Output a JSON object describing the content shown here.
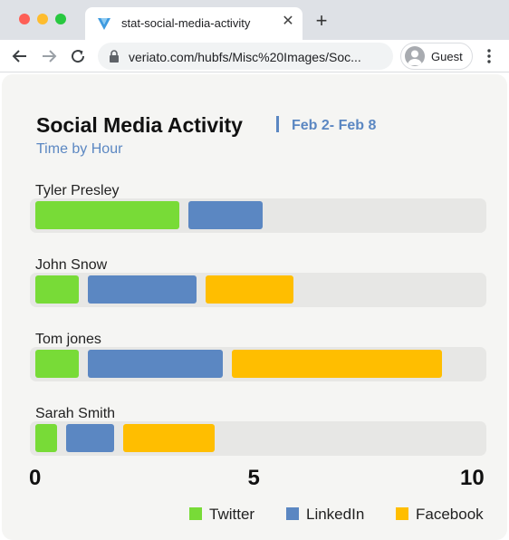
{
  "browser": {
    "tab_title": "stat-social-media-activity",
    "url": "veriato.com/hubfs/Misc%20Images/Soc...",
    "profile_label": "Guest"
  },
  "page": {
    "title": "Social Media Activity",
    "date_range": "Feb 2- Feb 8",
    "subtitle": "Time by Hour"
  },
  "chart_data": {
    "type": "bar",
    "orientation": "horizontal",
    "title": "Social Media Activity",
    "subtitle": "Time by Hour",
    "categories": [
      "Tyler Presley",
      "John Snow",
      "Tom jones",
      "Sarah Smith"
    ],
    "series": [
      {
        "name": "Twitter",
        "color": "#78db37",
        "values": [
          3.5,
          1.2,
          1.2,
          0.7
        ]
      },
      {
        "name": "LinkedIn",
        "color": "#5b87c2",
        "values": [
          1.9,
          2.7,
          3.3,
          1.3
        ]
      },
      {
        "name": "Facebook",
        "color": "#ffbe00",
        "values": [
          0,
          2.2,
          5.0,
          2.3
        ]
      }
    ],
    "xlim": [
      0,
      10
    ],
    "x_ticks": [
      "0",
      "5",
      "10"
    ],
    "stacked": true,
    "grid": false,
    "legend_position": "bottom-right"
  }
}
